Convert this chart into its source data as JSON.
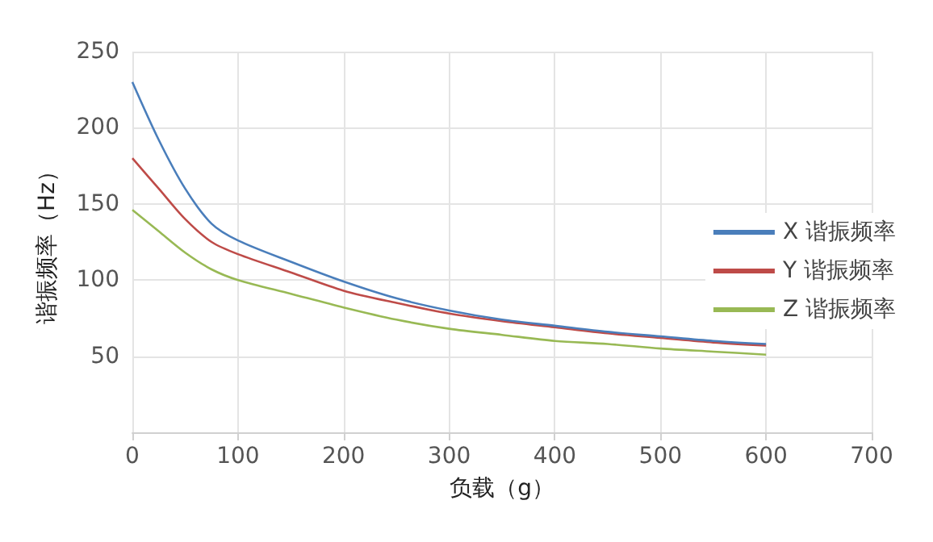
{
  "chart_data": {
    "type": "line",
    "xlabel": "负载（g）",
    "ylabel": "谐振频率（Hz）",
    "x": [
      0,
      25,
      50,
      75,
      100,
      150,
      200,
      250,
      300,
      350,
      400,
      450,
      500,
      550,
      600
    ],
    "series": [
      {
        "name": "X 谐振频率",
        "color": "#4a7ebb",
        "values": [
          230,
          192,
          160,
          137,
          126,
          112,
          99,
          88,
          80,
          74,
          70,
          66,
          63,
          60,
          58
        ]
      },
      {
        "name": "Y 谐振频率",
        "color": "#be4b48",
        "values": [
          180,
          160,
          140,
          125,
          117,
          105,
          93,
          85,
          78,
          73,
          69,
          65,
          62,
          59,
          57
        ]
      },
      {
        "name": "Z 谐振频率",
        "color": "#98b954",
        "values": [
          146,
          132,
          118,
          107,
          100,
          91,
          82,
          74,
          68,
          64,
          60,
          58,
          55,
          53,
          51
        ]
      }
    ],
    "xlim": [
      0,
      700
    ],
    "xticks": [
      0,
      100,
      200,
      300,
      400,
      500,
      600,
      700
    ],
    "ylim": [
      0,
      250
    ],
    "yticks": [
      {
        "value": 0,
        "label": null
      },
      50,
      100,
      150,
      200,
      250
    ],
    "grid": true,
    "legend": "right",
    "marker": "none",
    "line_style": "solid"
  }
}
